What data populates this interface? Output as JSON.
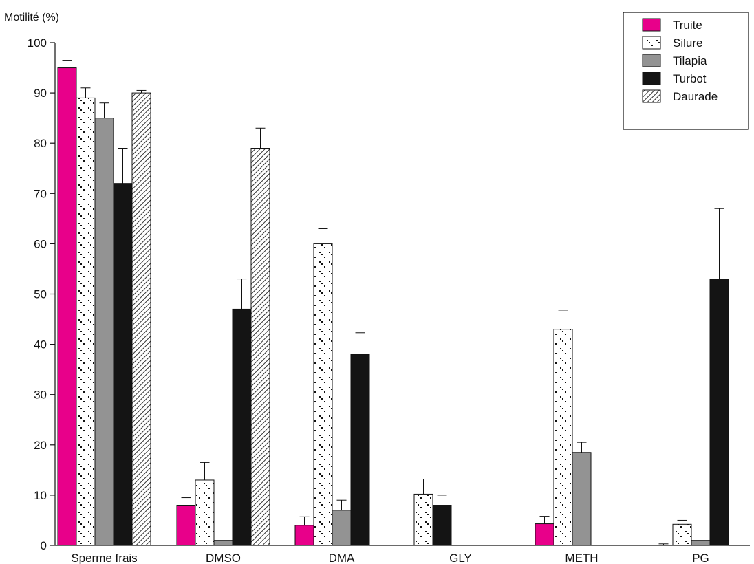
{
  "chart_data": {
    "type": "bar",
    "title": "",
    "ylabel": "Motilité (%)",
    "xlabel": "",
    "ylim": [
      0,
      100
    ],
    "yticks": [
      0,
      10,
      20,
      30,
      40,
      50,
      60,
      70,
      80,
      90,
      100
    ],
    "categories": [
      "Sperme frais",
      "DMSO",
      "DMA",
      "GLY",
      "METH",
      "PG"
    ],
    "grid": false,
    "legend_position": "top-right",
    "series": [
      {
        "name": "Truite",
        "fill": "#e8008a",
        "pattern": "solid",
        "values": [
          95,
          8,
          4,
          null,
          4.3,
          0
        ],
        "errors": [
          1.5,
          1.5,
          1.7,
          null,
          1.5,
          0.3
        ]
      },
      {
        "name": "Silure",
        "fill": "#ffffff",
        "pattern": "dots",
        "values": [
          89,
          13,
          60,
          10.2,
          43,
          4.2
        ],
        "errors": [
          2,
          3.5,
          3,
          3,
          3.8,
          0.8
        ]
      },
      {
        "name": "Tilapia",
        "fill": "#939393",
        "pattern": "solid",
        "values": [
          85,
          1,
          7,
          null,
          18.5,
          1
        ],
        "errors": [
          3,
          0,
          2,
          null,
          2,
          0
        ]
      },
      {
        "name": "Turbot",
        "fill": "#141414",
        "pattern": "solid",
        "values": [
          72,
          47,
          38,
          8,
          null,
          53
        ],
        "errors": [
          7,
          6,
          4.3,
          2,
          null,
          14
        ]
      },
      {
        "name": "Daurade",
        "fill": "#ffffff",
        "pattern": "hatch",
        "values": [
          90,
          79,
          null,
          null,
          null,
          null
        ],
        "errors": [
          0.5,
          4,
          null,
          null,
          null,
          null
        ]
      }
    ]
  }
}
